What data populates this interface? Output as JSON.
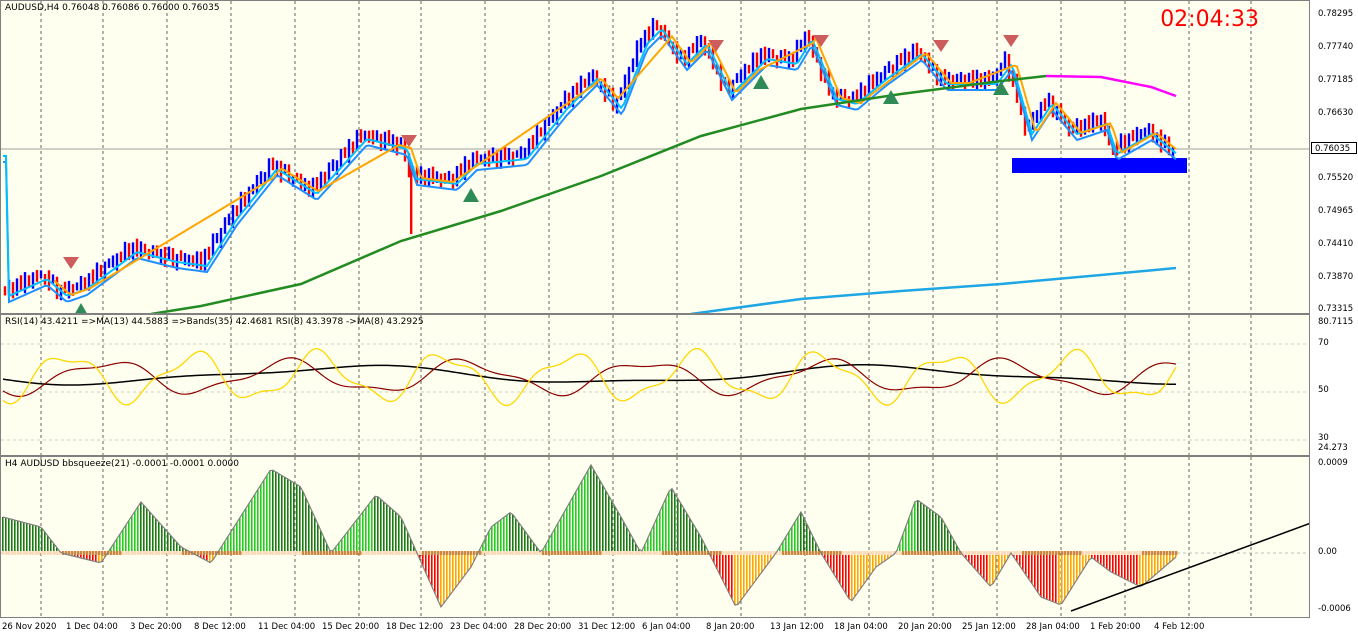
{
  "main": {
    "title": "AUDUSD,H4  0.76048 0.76086 0.76000 0.76035",
    "clock": "02:04:33",
    "current_price": "0.76035",
    "price_labels": [
      "0.78295",
      "0.77740",
      "0.77185",
      "0.76630",
      "0.76035",
      "0.75520",
      "0.74965",
      "0.74410",
      "0.73870",
      "0.73315"
    ],
    "colors": {
      "bull": "#0000ff",
      "bear": "#ff0000",
      "ma_fast": "#00bfff",
      "ma_mid": "#1e90ff",
      "ma_orange": "#ffa500",
      "ma_long": "#228b22",
      "ma_magenta": "#ff00ff",
      "ma_sky": "#1ea7e4",
      "zone": "#0000ff"
    }
  },
  "rsi": {
    "title": "RSI(14) 43.4211  =>MA(13) 44.5883  =>Bands(35) 42.4681  RSI(8) 43.3978  ->MA(8) 43.2925",
    "labels": [
      "80.7115",
      "70",
      "50",
      "30",
      "24.273"
    ]
  },
  "squeeze": {
    "title": "H4 AUDUSD bbsqueeze(21) -0.0001 -0.0001 0.0000",
    "labels": [
      "0.0009",
      "0.00",
      "-0.0006"
    ]
  },
  "x_axis": [
    "26 Nov 2020",
    "1 Dec 04:00",
    "3 Dec 20:00",
    "8 Dec 12:00",
    "11 Dec 04:00",
    "15 Dec 20:00",
    "18 Dec 12:00",
    "23 Dec 04:00",
    "28 Dec 20:00",
    "31 Dec 12:00",
    "6 Jan 04:00",
    "8 Jan 20:00",
    "13 Jan 12:00",
    "18 Jan 04:00",
    "20 Jan 20:00",
    "25 Jan 12:00",
    "28 Jan 04:00",
    "1 Feb 20:00",
    "4 Feb 12:00"
  ]
}
